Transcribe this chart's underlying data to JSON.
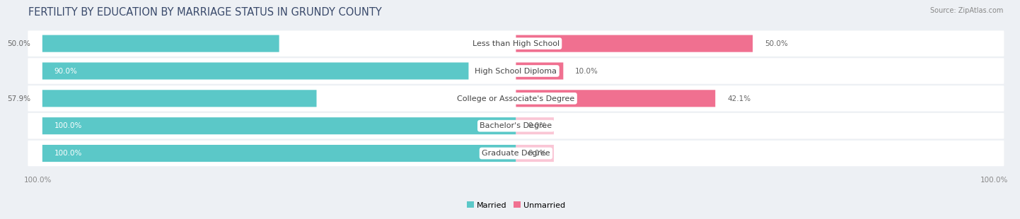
{
  "title": "FERTILITY BY EDUCATION BY MARRIAGE STATUS IN GRUNDY COUNTY",
  "source": "Source: ZipAtlas.com",
  "categories": [
    "Less than High School",
    "High School Diploma",
    "College or Associate's Degree",
    "Bachelor's Degree",
    "Graduate Degree"
  ],
  "married": [
    50.0,
    90.0,
    57.9,
    100.0,
    100.0
  ],
  "unmarried": [
    50.0,
    10.0,
    42.1,
    0.0,
    0.0
  ],
  "married_color": "#5bc8c8",
  "unmarried_color": "#f07090",
  "unmarried_light_color": "#f9aec4",
  "bg_color": "#edf0f4",
  "row_bg": "#ffffff",
  "title_color": "#3a4a6b",
  "label_color": "#444444",
  "value_color_inside": "#ffffff",
  "value_color_outside": "#666666",
  "footer_value_color": "#888888",
  "title_fontsize": 10.5,
  "label_fontsize": 8.0,
  "value_fontsize": 7.5,
  "legend_fontsize": 8.0,
  "source_fontsize": 7.0
}
